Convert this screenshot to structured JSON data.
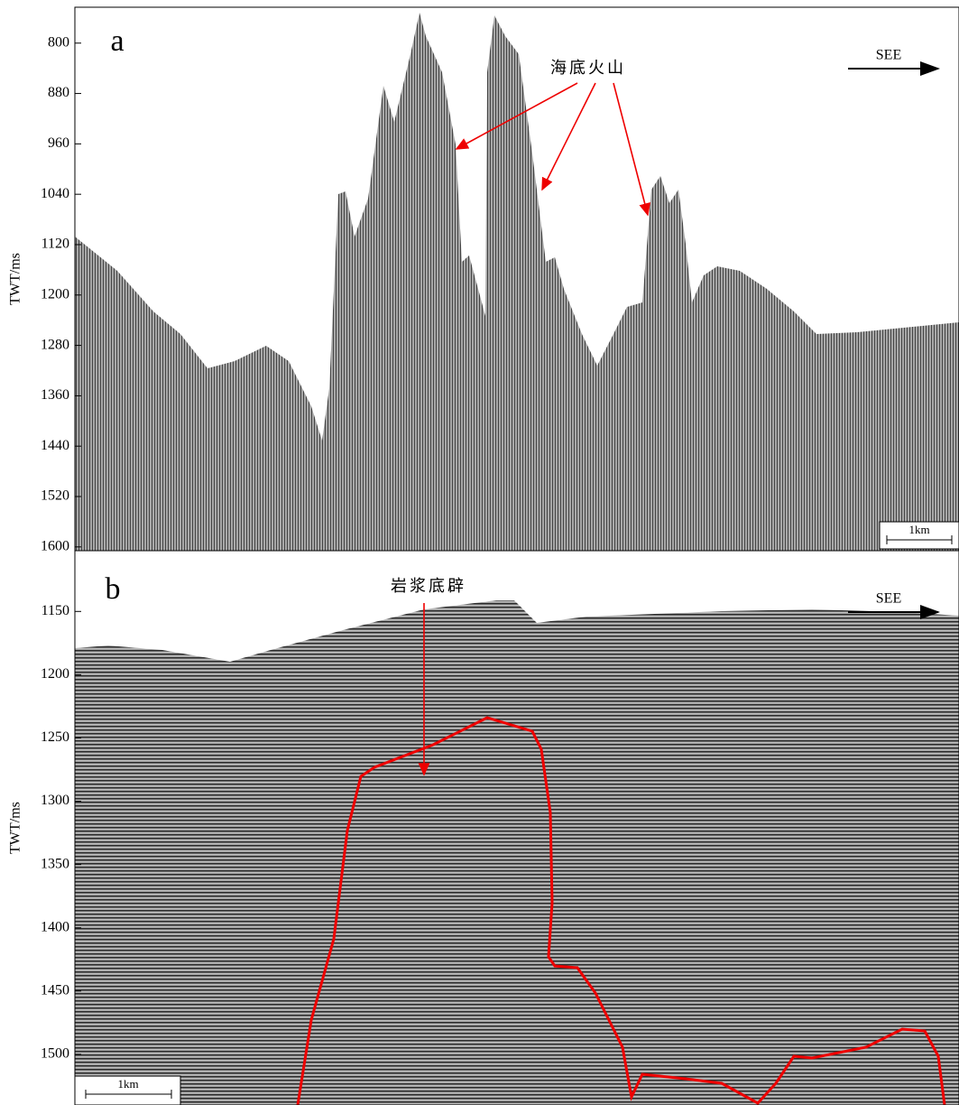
{
  "panels": [
    {
      "label": "a",
      "y_axis_label": "TWT/ms",
      "ylim": [
        743,
        1606
      ],
      "yticks": [
        800,
        880,
        960,
        1040,
        1120,
        1200,
        1280,
        1360,
        1440,
        1520,
        1600
      ],
      "direction": "SEE",
      "annotation": "海底火山",
      "scale_bar": "1km"
    },
    {
      "label": "b",
      "y_axis_label": "TWT/ms",
      "ylim": [
        1102,
        1540
      ],
      "yticks": [
        1150,
        1200,
        1250,
        1300,
        1350,
        1400,
        1450,
        1500
      ],
      "direction": "SEE",
      "annotation": "岩浆底辟",
      "scale_bar": "1km"
    }
  ]
}
